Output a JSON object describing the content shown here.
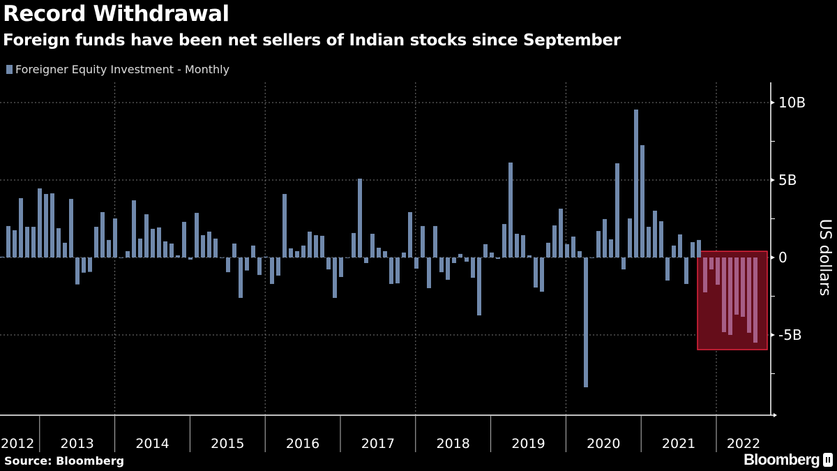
{
  "header": {
    "title": "Record Withdrawal",
    "subtitle": "Foreign funds have been net sellers of Indian stocks since September"
  },
  "footer": {
    "source": "Source: Bloomberg",
    "brand": "Bloomberg"
  },
  "colors": {
    "bar": "#7089ac",
    "highlight_bar": "#a65e86",
    "highlight_fill": "#650d1a",
    "highlight_border": "#e0243c",
    "background": "#000000"
  },
  "chart_data": {
    "type": "bar",
    "title": "Record Withdrawal",
    "subtitle": "Foreign funds have been net sellers of Indian stocks since September",
    "ylabel": "US dollars",
    "xlabel": "",
    "legend": {
      "entries": [
        "Foreigner Equity Investment - Monthly"
      ],
      "placement": "top-left"
    },
    "series": [
      {
        "name": "Foreigner Equity Investment - Monthly",
        "start_month": "2012-06",
        "unit": "billion USD",
        "values": [
          0.05,
          2.03,
          1.76,
          3.83,
          1.98,
          1.98,
          4.46,
          4.1,
          4.14,
          1.89,
          0.95,
          3.78,
          -1.74,
          -0.98,
          -0.93,
          1.98,
          2.93,
          1.13,
          2.52,
          -0.02,
          0.41,
          3.69,
          1.22,
          2.79,
          1.85,
          1.94,
          1.04,
          0.9,
          0.14,
          2.3,
          -0.14,
          2.88,
          1.44,
          1.67,
          1.22,
          0,
          -0.95,
          0.9,
          -2.61,
          -0.84,
          0.77,
          -1.13,
          0.06,
          -1.71,
          -1.17,
          4.1,
          0.59,
          0.41,
          0.77,
          1.67,
          1.44,
          1.4,
          -0.77,
          -2.61,
          -1.26,
          0,
          1.58,
          5.09,
          -0.36,
          1.53,
          0.63,
          0.41,
          -1.71,
          -1.67,
          0.32,
          2.93,
          -0.72,
          2.03,
          -1.98,
          2.03,
          -0.95,
          -1.44,
          -0.36,
          0.23,
          -0.27,
          -1.31,
          -3.74,
          0.86,
          0.32,
          -0.09,
          2.16,
          6.13,
          1.53,
          1.44,
          0.14,
          -1.94,
          -2.21,
          0.95,
          2.07,
          3.15,
          0.86,
          1.35,
          0.41,
          -8.38,
          0,
          1.71,
          2.48,
          1.17,
          6.08,
          -0.77,
          2.52,
          9.55,
          7.25,
          1.98,
          3.02,
          2.34,
          -1.49,
          0.77,
          1.49,
          -1.71,
          0.99,
          1.13,
          -2.25,
          -0.77,
          -1.76,
          -4.82,
          -5.0,
          -3.69,
          -3.83,
          -4.86,
          -5.5
        ]
      }
    ],
    "highlight": {
      "from_index": 112,
      "to_index": 120
    },
    "yticks": [
      {
        "v": 10,
        "label": "10B"
      },
      {
        "v": 5,
        "label": "5B"
      },
      {
        "v": 0,
        "label": "0"
      },
      {
        "v": -5,
        "label": "-5B"
      }
    ],
    "xticks": [
      "2012",
      "2013",
      "2014",
      "2015",
      "2016",
      "2017",
      "2018",
      "2019",
      "2020",
      "2021",
      "2022"
    ],
    "ylim": [
      -10,
      11.3
    ],
    "grid": true
  }
}
